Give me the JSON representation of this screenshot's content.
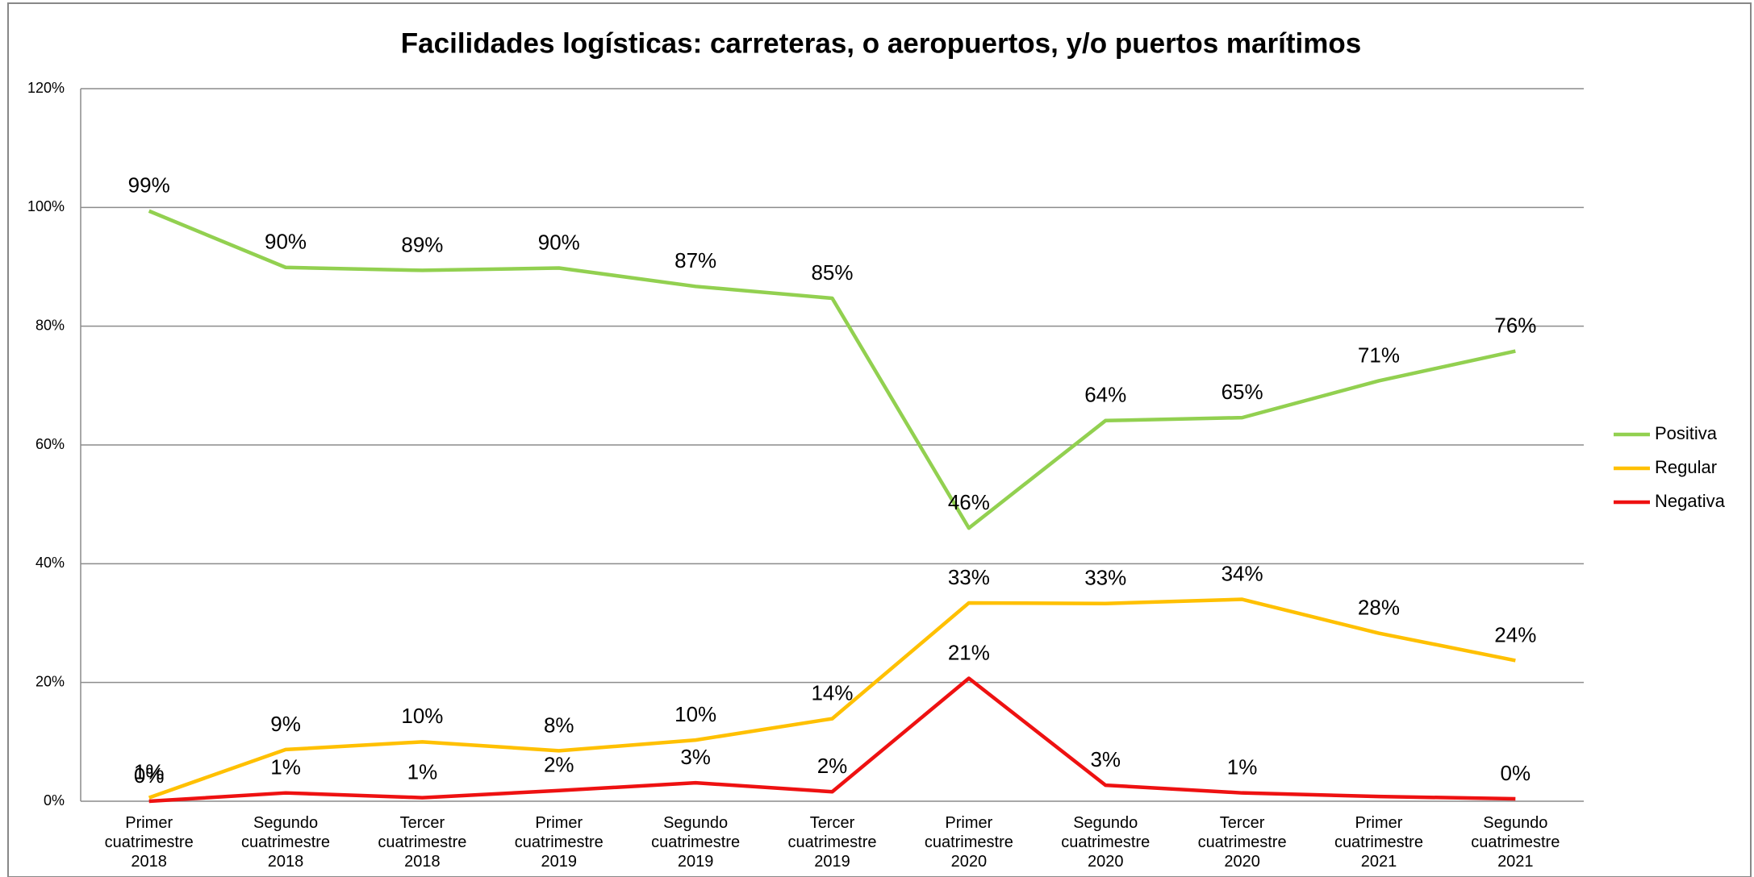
{
  "chart_data": {
    "type": "line",
    "title": "Facilidades logísticas: carreteras, o aeropuertos, y/o puertos marítimos",
    "categories": [
      "Primer cuatrimestre 2018",
      "Segundo cuatrimestre 2018",
      "Tercer cuatrimestre 2018",
      "Primer cuatrimestre 2019",
      "Segundo cuatrimestre 2019",
      "Tercer cuatrimestre 2019",
      "Primer cuatrimestre 2020",
      "Segundo cuatrimestre 2020",
      "Tercer cuatrimestre 2020",
      "Primer cuatrimestre 2021",
      "Segundo cuatrimestre 2021"
    ],
    "series": [
      {
        "name": "Positiva",
        "color": "#92d050",
        "values": [
          99.4,
          89.9,
          89.4,
          89.8,
          86.7,
          84.7,
          46.0,
          64.1,
          64.6,
          70.8,
          75.8
        ],
        "value_labels": [
          "99%",
          "90%",
          "89%",
          "90%",
          "87%",
          "85%",
          "46%",
          "64%",
          "65%",
          "71%",
          "76%"
        ]
      },
      {
        "name": "Regular",
        "color": "#ffc000",
        "values": [
          0.6,
          8.7,
          10.0,
          8.5,
          10.3,
          13.9,
          33.4,
          33.3,
          34.0,
          28.3,
          23.7
        ],
        "value_labels": [
          "1%",
          "9%",
          "10%",
          "8%",
          "10%",
          "14%",
          "33%",
          "33%",
          "34%",
          "28%",
          "24%"
        ]
      },
      {
        "name": "Negativa",
        "color": "#ee1111",
        "values": [
          0.0,
          1.4,
          0.6,
          1.8,
          3.1,
          1.6,
          20.7,
          2.7,
          1.4,
          0.8,
          0.4
        ],
        "value_labels": [
          "0%",
          "1%",
          "1%",
          "2%",
          "3%",
          "2%",
          "21%",
          "3%",
          "1%",
          null,
          "0%"
        ]
      }
    ],
    "ylim": [
      0,
      120
    ],
    "yticks": [
      {
        "value": 0,
        "label": "0%"
      },
      {
        "value": 20,
        "label": "20%"
      },
      {
        "value": 40,
        "label": "40%"
      },
      {
        "value": 60,
        "label": "60%"
      },
      {
        "value": 80,
        "label": "80%"
      },
      {
        "value": 100,
        "label": "100%"
      },
      {
        "value": 120,
        "label": "120%"
      }
    ],
    "grid": true,
    "legend": "right"
  }
}
